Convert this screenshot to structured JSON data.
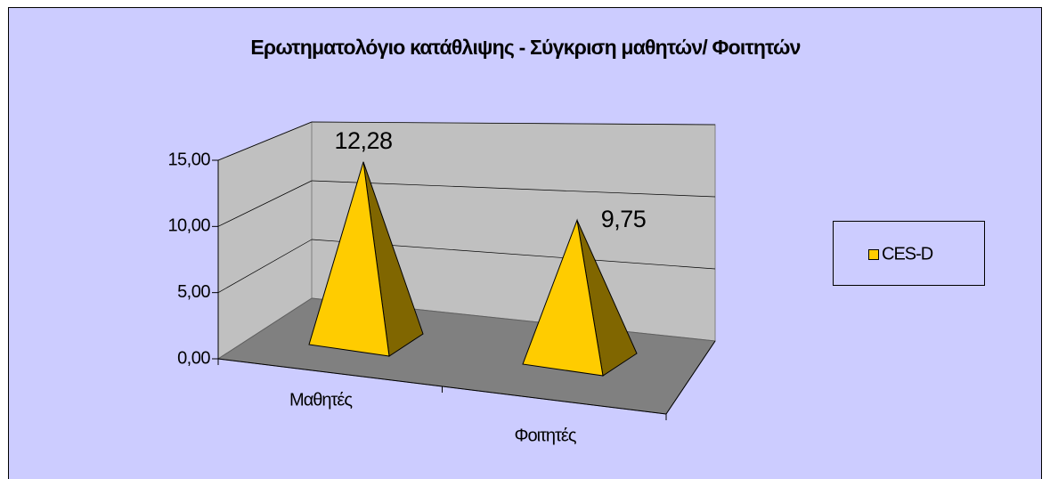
{
  "chart_data": {
    "type": "pyramid3d",
    "title": "Ερωτηματολόγιο κατάθλιψης - Σύγκριση μαθητών/ Φοιτητών",
    "categories": [
      "Μαθητές",
      "Φοιτητές"
    ],
    "series": [
      {
        "name": "CES-D",
        "color": "#ffcc00",
        "values": [
          12.28,
          9.75
        ],
        "value_labels": [
          "12,28",
          "9,75"
        ]
      }
    ],
    "ylim": [
      0,
      15
    ],
    "yticks": [
      {
        "value": 0,
        "label": "0,00"
      },
      {
        "value": 5,
        "label": "5,00"
      },
      {
        "value": 10,
        "label": "10,00"
      },
      {
        "value": 15,
        "label": "15,00"
      }
    ],
    "grid": true,
    "legend": "right"
  }
}
